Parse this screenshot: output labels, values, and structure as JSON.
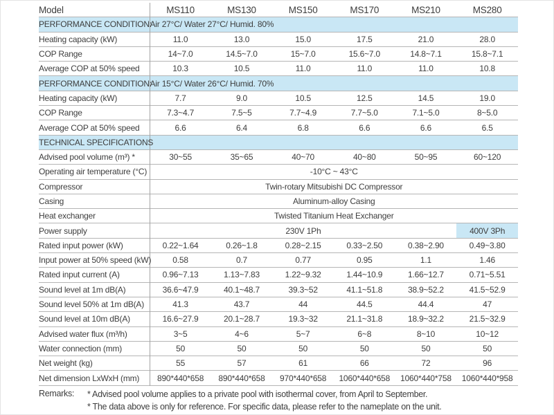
{
  "table": {
    "header": {
      "label": "Model",
      "models": [
        "MS110",
        "MS130",
        "MS150",
        "MS170",
        "MS210",
        "MS280"
      ]
    },
    "rows": [
      {
        "type": "section",
        "label": "PERFORMANCE CONDITION:",
        "value": "Air 27°C/ Water 27°C/ Humid. 80%"
      },
      {
        "type": "data",
        "label": "Heating capacity (kW)",
        "values": [
          "11.0",
          "13.0",
          "15.0",
          "17.5",
          "21.0",
          "28.0"
        ]
      },
      {
        "type": "data",
        "label": "COP Range",
        "values": [
          "14~7.0",
          "14.5~7.0",
          "15~7.0",
          "15.6~7.0",
          "14.8~7.1",
          "15.8~7.1"
        ]
      },
      {
        "type": "data",
        "label": "Average COP at 50% speed",
        "values": [
          "10.3",
          "10.5",
          "11.0",
          "11.0",
          "11.0",
          "10.8"
        ]
      },
      {
        "type": "section",
        "label": "PERFORMANCE CONDITION:",
        "value": "Air 15°C/ Water 26°C/ Humid. 70%"
      },
      {
        "type": "data",
        "label": "Heating capacity (kW)",
        "values": [
          "7.7",
          "9.0",
          "10.5",
          "12.5",
          "14.5",
          "19.0"
        ]
      },
      {
        "type": "data",
        "label": "COP Range",
        "values": [
          "7.3~4.7",
          "7.5~5",
          "7.7~4.9",
          "7.7~5.0",
          "7.1~5.0",
          "8~5.0"
        ]
      },
      {
        "type": "data",
        "label": "Average COP at 50% speed",
        "values": [
          "6.6",
          "6.4",
          "6.8",
          "6.6",
          "6.6",
          "6.5"
        ]
      },
      {
        "type": "section",
        "label": "TECHNICAL SPECIFICATIONS",
        "value": ""
      },
      {
        "type": "data",
        "label": "Advised pool volume (m³) *",
        "values": [
          "30~55",
          "35~65",
          "40~70",
          "40~80",
          "50~95",
          "60~120"
        ]
      },
      {
        "type": "span",
        "label": "Operating air temperature (°C)",
        "value": "-10°C ~ 43°C"
      },
      {
        "type": "span",
        "label": "Compressor",
        "value": "Twin-rotary Mitsubishi DC Compressor"
      },
      {
        "type": "span",
        "label": "Casing",
        "value": "Aluminum-alloy Casing"
      },
      {
        "type": "span",
        "label": "Heat exchanger",
        "value": "Twisted Titanium Heat Exchanger"
      },
      {
        "type": "power",
        "label": "Power supply",
        "value_main": "230V 1Ph",
        "value_highlight": "400V 3Ph"
      },
      {
        "type": "data",
        "label": "Rated input power (kW)",
        "values": [
          "0.22~1.64",
          "0.26~1.8",
          "0.28~2.15",
          "0.33~2.50",
          "0.38~2.90",
          "0.49~3.80"
        ]
      },
      {
        "type": "data",
        "label": "Input power at 50% speed (kW)",
        "values": [
          "0.58",
          "0.7",
          "0.77",
          "0.95",
          "1.1",
          "1.46"
        ]
      },
      {
        "type": "data",
        "label": "Rated input current (A)",
        "values": [
          "0.96~7.13",
          "1.13~7.83",
          "1.22~9.32",
          "1.44~10.9",
          "1.66~12.7",
          "0.71~5.51"
        ]
      },
      {
        "type": "data",
        "label": "Sound level at 1m dB(A)",
        "values": [
          "36.6~47.9",
          "40.1~48.7",
          "39.3~52",
          "41.1~51.8",
          "38.9~52.2",
          "41.5~52.9"
        ]
      },
      {
        "type": "data",
        "label": "Sound level 50% at 1m dB(A)",
        "values": [
          "41.3",
          "43.7",
          "44",
          "44.5",
          "44.4",
          "47"
        ]
      },
      {
        "type": "data",
        "label": "Sound level at 10m dB(A)",
        "values": [
          "16.6~27.9",
          "20.1~28.7",
          "19.3~32",
          "21.1~31.8",
          "18.9~32.2",
          "21.5~32.9"
        ]
      },
      {
        "type": "data",
        "label": "Advised water flux (m³/h)",
        "values": [
          "3~5",
          "4~6",
          "5~7",
          "6~8",
          "8~10",
          "10~12"
        ]
      },
      {
        "type": "data",
        "label": "Water connection (mm)",
        "values": [
          "50",
          "50",
          "50",
          "50",
          "50",
          "50"
        ]
      },
      {
        "type": "data",
        "label": "Net weight (kg)",
        "values": [
          "55",
          "57",
          "61",
          "66",
          "72",
          "96"
        ]
      },
      {
        "type": "data",
        "label": "Net dimension LxWxH (mm)",
        "values": [
          "890*440*658",
          "890*440*658",
          "970*440*658",
          "1060*440*658",
          "1060*440*758",
          "1060*440*958"
        ]
      }
    ],
    "colors": {
      "highlight": "#c9e7f5",
      "row_line": "#b5b5b5",
      "divider_line": "#a3a3a3",
      "text": "#3d3d3d"
    }
  },
  "remarks": {
    "label": "Remarks:",
    "lines": [
      "* Advised pool volume applies to a private pool with isothermal cover, from April to September.",
      "* The data above is only for reference. For specific data, please refer to the nameplate on the unit."
    ]
  }
}
